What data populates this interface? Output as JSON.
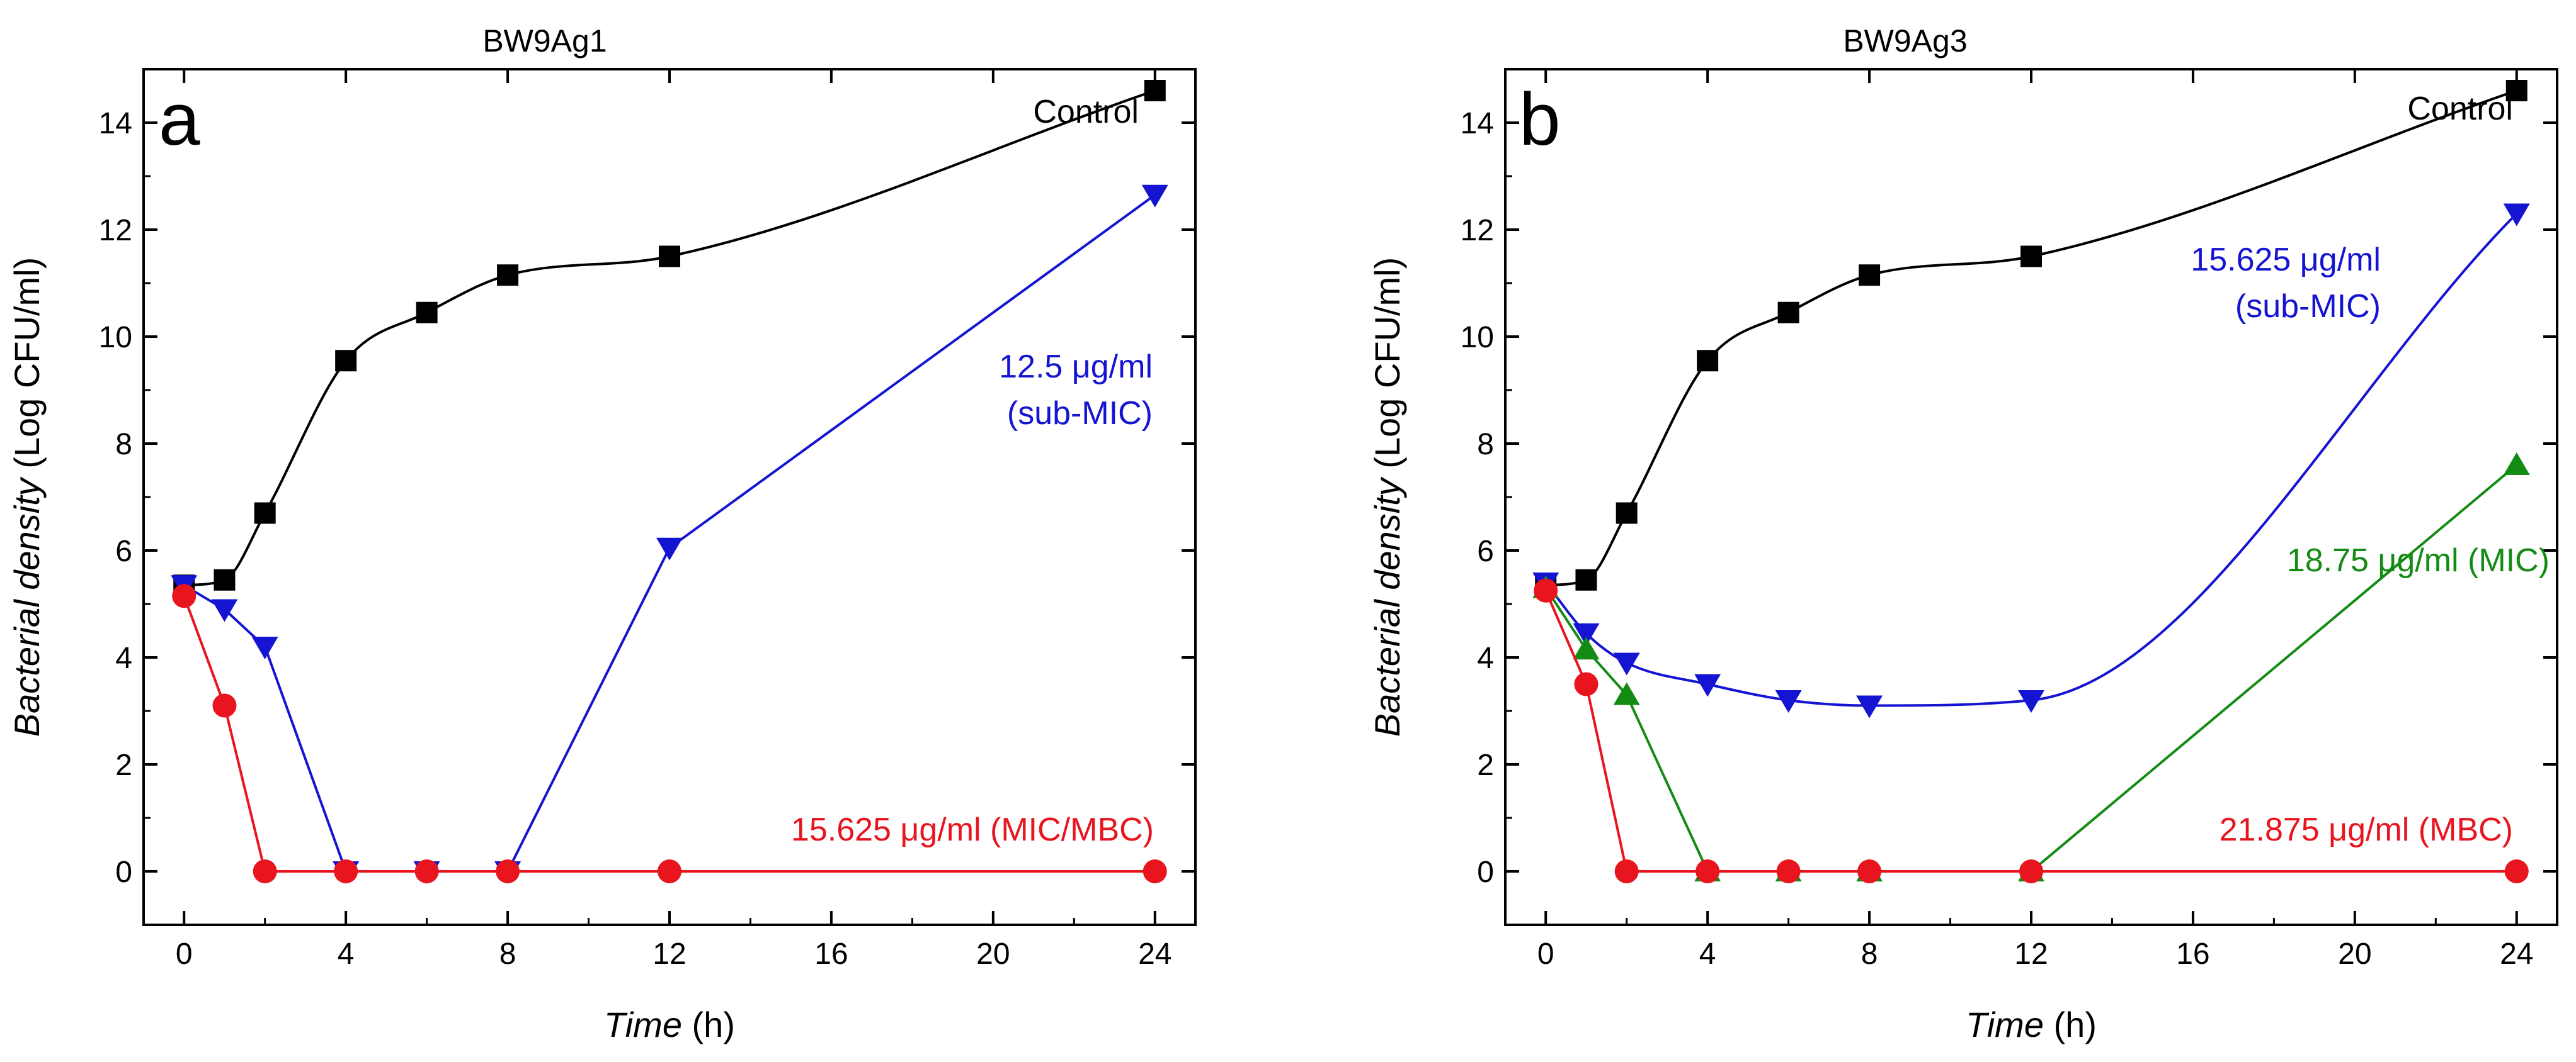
{
  "chart_data": [
    {
      "type": "line",
      "panel_label": "a",
      "title": "BW9Ag1",
      "xlabel_italic": "Time",
      "xlabel_unit": " (h)",
      "ylabel_italic": "Bacterial density",
      "ylabel_unit": " (Log CFU/ml)",
      "xlim": [
        -1,
        25
      ],
      "ylim": [
        -1,
        15
      ],
      "xticks": [
        0,
        4,
        8,
        12,
        16,
        20,
        24
      ],
      "yticks": [
        0,
        2,
        4,
        6,
        8,
        10,
        12,
        14
      ],
      "series": [
        {
          "name": "Control",
          "color": "#000000",
          "marker": "square",
          "smooth": true,
          "x": [
            0,
            1,
            2,
            4,
            6,
            8,
            12,
            24
          ],
          "y": [
            5.35,
            5.45,
            6.7,
            9.55,
            10.45,
            11.15,
            11.5,
            14.6
          ]
        },
        {
          "name": "12.5 μg/ml (sub-MIC)",
          "color": "#1414d2",
          "marker": "triangle-down",
          "smooth": false,
          "x": [
            0,
            1,
            2,
            4,
            6,
            8,
            12,
            24
          ],
          "y": [
            5.35,
            4.9,
            4.2,
            0,
            0,
            0,
            6.05,
            12.65
          ]
        },
        {
          "name": "15.625 μg/ml (MIC/MBC)",
          "color": "#e8141e",
          "marker": "circle",
          "smooth": false,
          "x": [
            0,
            1,
            2,
            4,
            6,
            8,
            12,
            24
          ],
          "y": [
            5.15,
            3.1,
            0,
            0,
            0,
            0,
            0,
            0
          ]
        }
      ],
      "annotations": [
        {
          "lines": [
            "Control"
          ],
          "color": "#000000"
        },
        {
          "lines": [
            "12.5 μg/ml",
            "(sub-MIC)"
          ],
          "color": "#1414d2"
        },
        {
          "lines": [
            "15.625 μg/ml (MIC/MBC)"
          ],
          "color": "#e8141e"
        }
      ]
    },
    {
      "type": "line",
      "panel_label": "b",
      "title": "BW9Ag3",
      "xlabel_italic": "Time",
      "xlabel_unit": " (h)",
      "ylabel_italic": "Bacterial density",
      "ylabel_unit": " (Log CFU/ml)",
      "xlim": [
        -1,
        25
      ],
      "ylim": [
        -1,
        15
      ],
      "xticks": [
        0,
        4,
        8,
        12,
        16,
        20,
        24
      ],
      "yticks": [
        0,
        2,
        4,
        6,
        8,
        10,
        12,
        14
      ],
      "series": [
        {
          "name": "Control",
          "color": "#000000",
          "marker": "square",
          "smooth": true,
          "x": [
            0,
            1,
            2,
            4,
            6,
            8,
            12,
            24
          ],
          "y": [
            5.35,
            5.45,
            6.7,
            9.55,
            10.45,
            11.15,
            11.5,
            14.6
          ]
        },
        {
          "name": "15.625 μg/ml (sub-MIC)",
          "color": "#1414d2",
          "marker": "triangle-down",
          "smooth": true,
          "x": [
            0,
            1,
            2,
            4,
            6,
            8,
            12,
            24
          ],
          "y": [
            5.4,
            4.45,
            3.9,
            3.5,
            3.2,
            3.1,
            3.2,
            12.3
          ]
        },
        {
          "name": "18.75 μg/ml (MIC)",
          "color": "#148c14",
          "marker": "triangle-up",
          "smooth": false,
          "x": [
            0,
            1,
            2,
            4,
            6,
            8,
            12,
            24
          ],
          "y": [
            5.3,
            4.15,
            3.3,
            0,
            0,
            0,
            0,
            7.6
          ]
        },
        {
          "name": "21.875 μg/ml (MBC)",
          "color": "#e8141e",
          "marker": "circle",
          "smooth": false,
          "x": [
            0,
            1,
            2,
            4,
            6,
            8,
            12,
            24
          ],
          "y": [
            5.25,
            3.5,
            0,
            0,
            0,
            0,
            0,
            0
          ]
        }
      ],
      "annotations": [
        {
          "lines": [
            "Control"
          ],
          "color": "#000000"
        },
        {
          "lines": [
            "15.625 μg/ml",
            "(sub-MIC)"
          ],
          "color": "#1414d2"
        },
        {
          "lines": [
            "18.75 μg/ml (MIC)"
          ],
          "color": "#148c14"
        },
        {
          "lines": [
            "21.875 μg/ml (MBC)"
          ],
          "color": "#e8141e"
        }
      ]
    }
  ]
}
